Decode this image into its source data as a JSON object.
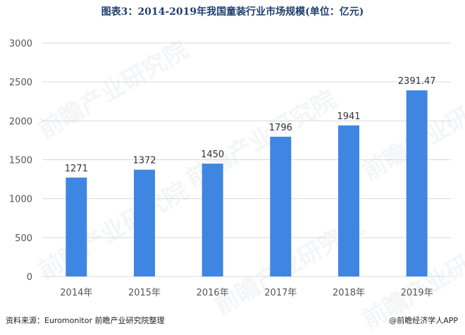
{
  "title": "图表3：2014-2019年我国童装行业市场规模(单位：亿元)",
  "footer": {
    "source": "资料来源：Euromonitor 前瞻产业研究院整理",
    "brand": "@前瞻经济学人APP"
  },
  "watermark": "前瞻产业研究院",
  "colors": {
    "bar": "#3f86e2",
    "grid": "#d9d9d9",
    "axis_text": "#555555",
    "title": "#1f3f6e"
  },
  "chart_data": {
    "type": "bar",
    "title": "图表3：2014-2019年我国童装行业市场规模(单位：亿元)",
    "categories": [
      "2014年",
      "2015年",
      "2016年",
      "2017年",
      "2018年",
      "2019年"
    ],
    "values": [
      1271,
      1372,
      1450,
      1796,
      1941,
      2391.47
    ],
    "value_labels": [
      "1271",
      "1372",
      "1450",
      "1796",
      "1941",
      "2391.47"
    ],
    "ylim": [
      0,
      3000
    ],
    "yticks": [
      0,
      500,
      1000,
      1500,
      2000,
      2500,
      3000
    ],
    "ytick_labels": [
      "0",
      "500",
      "1000",
      "1500",
      "2000",
      "2500",
      "3000"
    ],
    "grid": true,
    "legend": "none",
    "xlabel": "",
    "ylabel": ""
  }
}
